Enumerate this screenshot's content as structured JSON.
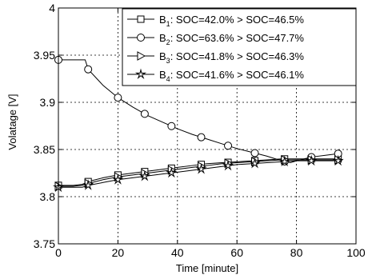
{
  "chart_data": {
    "type": "line",
    "title": "",
    "xlabel": "Time [minute]",
    "ylabel": "Volatage [V]",
    "xlim": [
      0,
      100
    ],
    "ylim": [
      3.75,
      4.0
    ],
    "xticks": [
      0,
      20,
      40,
      60,
      80,
      100
    ],
    "yticks": [
      3.75,
      3.8,
      3.85,
      3.9,
      3.95,
      4.0
    ],
    "xtick_labels": [
      "0",
      "20",
      "40",
      "60",
      "80",
      "100"
    ],
    "ytick_labels": [
      "3.75",
      "3.8",
      "3.85",
      "3.9",
      "3.95",
      "4"
    ],
    "grid": true,
    "legend_position": "top-right",
    "series": [
      {
        "name": "B",
        "subscript": "1",
        "legend_rest": ": SOC=42.0% > SOC=46.5%",
        "marker": "square",
        "x": [
          0,
          2,
          5,
          8,
          10,
          15,
          20,
          25,
          30,
          35,
          40,
          45,
          50,
          55,
          60,
          65,
          70,
          75,
          80,
          85,
          90,
          95
        ],
        "y": [
          3.812,
          3.812,
          3.812,
          3.813,
          3.816,
          3.82,
          3.823,
          3.825,
          3.827,
          3.829,
          3.831,
          3.833,
          3.835,
          3.836,
          3.837,
          3.838,
          3.839,
          3.84,
          3.84,
          3.84,
          3.84,
          3.84
        ],
        "marker_x": [
          0,
          10,
          20,
          29,
          38,
          48,
          57,
          66,
          76,
          85,
          94
        ]
      },
      {
        "name": "B",
        "subscript": "2",
        "legend_rest": ": SOC=63.6% > SOC=47.7%",
        "marker": "circle",
        "x": [
          0,
          3,
          6,
          9,
          10,
          15,
          20,
          25,
          30,
          35,
          40,
          45,
          50,
          55,
          60,
          65,
          70,
          75,
          78,
          80,
          85,
          90,
          95
        ],
        "y": [
          3.945,
          3.945,
          3.945,
          3.945,
          3.935,
          3.918,
          3.905,
          3.895,
          3.886,
          3.879,
          3.872,
          3.866,
          3.861,
          3.856,
          3.851,
          3.847,
          3.843,
          3.838,
          3.836,
          3.838,
          3.842,
          3.844,
          3.846
        ],
        "marker_x": [
          0,
          10,
          20,
          29,
          38,
          48,
          57,
          66,
          76,
          85,
          94
        ]
      },
      {
        "name": "B",
        "subscript": "3",
        "legend_rest": ": SOC=41.8% > SOC=46.3%",
        "marker": "triangle-right",
        "x": [
          0,
          2,
          5,
          8,
          10,
          15,
          20,
          25,
          30,
          35,
          40,
          45,
          50,
          55,
          60,
          65,
          70,
          75,
          80,
          85,
          90,
          95
        ],
        "y": [
          3.811,
          3.811,
          3.811,
          3.812,
          3.814,
          3.818,
          3.821,
          3.823,
          3.825,
          3.827,
          3.829,
          3.831,
          3.833,
          3.835,
          3.836,
          3.837,
          3.838,
          3.839,
          3.839,
          3.839,
          3.839,
          3.839
        ],
        "marker_x": [
          0,
          10,
          20,
          29,
          38,
          48,
          57,
          66,
          76,
          85,
          94
        ]
      },
      {
        "name": "B",
        "subscript": "4",
        "legend_rest": ": SOC=41.6% > SOC=46.1%",
        "marker": "star",
        "x": [
          0,
          2,
          5,
          8,
          10,
          15,
          20,
          25,
          30,
          35,
          40,
          45,
          50,
          55,
          60,
          65,
          70,
          75,
          80,
          85,
          90,
          95
        ],
        "y": [
          3.81,
          3.81,
          3.81,
          3.81,
          3.812,
          3.815,
          3.818,
          3.82,
          3.822,
          3.824,
          3.826,
          3.828,
          3.83,
          3.832,
          3.834,
          3.835,
          3.836,
          3.837,
          3.838,
          3.838,
          3.838,
          3.838
        ],
        "marker_x": [
          0,
          10,
          20,
          29,
          38,
          48,
          57,
          66,
          76,
          85,
          94
        ]
      }
    ]
  }
}
